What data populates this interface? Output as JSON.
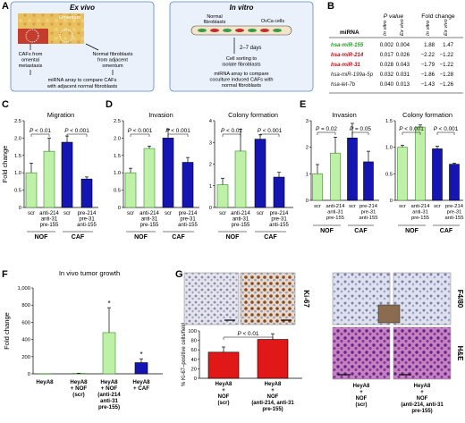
{
  "colors": {
    "green": "#bff0a8",
    "blue": "#1515b4",
    "red": "#e01818",
    "light_blue_box": "#eaf1fb",
    "mir_green": "#2a9a2a",
    "mir_red": "#c0101c"
  },
  "panel_labels": [
    "A",
    "B",
    "C",
    "D",
    "E",
    "F",
    "G"
  ],
  "panelA": {
    "exvivo_title": "Ex vivo",
    "omentum_label": "Omentum",
    "caf_text": [
      "CAFs from",
      "omental",
      "metastasis"
    ],
    "nf_text": [
      "Normal fibroblasts",
      "from adjacent",
      "omentum"
    ],
    "bottom_text": [
      "miRNA array to compare CAFs",
      "with adjacent normal fibroblasts"
    ],
    "invitro_title": "In vitro",
    "normal_fib_label": [
      "Normal",
      "fibroblasts"
    ],
    "ovca_label": "OvCa cells",
    "days_label": "2–7 days",
    "sorting_text": [
      "Cell sorting to",
      "isolate fibroblasts"
    ],
    "invitro_bottom": [
      "miRNA array to compare",
      "coculture induced CAFs with",
      "normal fibroblasts"
    ]
  },
  "panelB": {
    "pvalue_header": "P value",
    "fold_header": "Fold change",
    "col_labels": [
      "In vitro",
      "Ex vivo",
      "In vitro",
      "Ex vivo"
    ],
    "mirna_header": "miRNA",
    "rows": [
      {
        "name": "hsa-miR-155",
        "color": "green",
        "vals": [
          "0.002",
          "0.004",
          "1.88",
          "1.47"
        ]
      },
      {
        "name": "hsa-miR-214",
        "color": "red",
        "vals": [
          "0.017",
          "0.026",
          "−2.22",
          "−1.22"
        ]
      },
      {
        "name": "hsa-miR-31",
        "color": "red",
        "vals": [
          "0.028",
          "0.043",
          "−1.79",
          "−1.22"
        ]
      },
      {
        "name": "hsa-miR-199a-5p",
        "color": "black",
        "vals": [
          "0.032",
          "0.031",
          "−1.86",
          "−1.28"
        ]
      },
      {
        "name": "hsa-let-7b",
        "color": "black",
        "vals": [
          "0.040",
          "0.013",
          "−1.43",
          "−1.26"
        ]
      }
    ]
  },
  "chart_data": [
    {
      "id": "C",
      "type": "bar",
      "title": "Migration",
      "ylabel": "Fold change",
      "ylim": [
        0,
        2.5
      ],
      "yticks": [
        "0",
        "0.5",
        "1.0",
        "1.5",
        "2.0",
        "2.5"
      ],
      "categories": [
        "scr",
        "anti-214 anti-31 pre-155",
        "scr",
        "pre-214 pre-31 anti-155"
      ],
      "values": [
        1.0,
        1.62,
        1.88,
        0.82
      ],
      "errors": [
        0.28,
        0.38,
        0.18,
        0.06
      ],
      "fills": [
        "green",
        "green",
        "blue",
        "blue"
      ],
      "pvalues": [
        "P < 0.01",
        "P < 0.001"
      ],
      "groups": [
        "NOF",
        "CAF"
      ]
    },
    {
      "id": "D1",
      "type": "bar",
      "title": "Invasion",
      "ylim": [
        0,
        2.5
      ],
      "yticks": [
        "0",
        "0.5",
        "1.0",
        "1.5",
        "2.0",
        "2.5"
      ],
      "categories": [
        "scr",
        "anti-214 anti-31 pre-155",
        "scr",
        "pre-214 pre-31 anti-155"
      ],
      "values": [
        1.0,
        1.7,
        2.0,
        1.3
      ],
      "errors": [
        0.13,
        0.07,
        0.26,
        0.14
      ],
      "fills": [
        "green",
        "green",
        "blue",
        "blue"
      ],
      "pvalues": [
        "P < 0.001",
        "P < 0.001"
      ],
      "groups": [
        "NOF",
        "CAF"
      ]
    },
    {
      "id": "D2",
      "type": "bar",
      "title": "Colony formation",
      "ylim": [
        0,
        4
      ],
      "yticks": [
        "0",
        "1",
        "2",
        "3",
        "4"
      ],
      "categories": [
        "scr",
        "anti-214 anti-31 pre-155",
        "scr",
        "pre-214 pre-31 anti-155"
      ],
      "values": [
        1.05,
        2.6,
        3.15,
        1.4
      ],
      "errors": [
        0.3,
        1.0,
        0.2,
        0.22
      ],
      "fills": [
        "green",
        "green",
        "blue",
        "blue"
      ],
      "pvalues": [
        "P < 0.01",
        "P < 0.001"
      ],
      "groups": [
        "NOF",
        "CAF"
      ]
    },
    {
      "id": "E1",
      "type": "bar",
      "title": "Invasion",
      "ylim": [
        0,
        3
      ],
      "yticks": [
        "0",
        "1",
        "2",
        "3"
      ],
      "categories": [
        "scr",
        "anti-214 anti-31 pre-155",
        "scr",
        "pre-214 pre-31 anti-155"
      ],
      "values": [
        1.0,
        1.78,
        2.35,
        1.45
      ],
      "errors": [
        0.35,
        0.6,
        0.55,
        0.4
      ],
      "fills": [
        "green",
        "green",
        "blue",
        "blue"
      ],
      "pvalues": [
        "P = 0.02",
        "P = 0.05"
      ],
      "groups": [
        "NOF",
        "CAF"
      ]
    },
    {
      "id": "E2",
      "type": "bar",
      "title": "Colony formation",
      "ylim": [
        0,
        1.5
      ],
      "yticks": [
        "0",
        "0.5",
        "1.0",
        "1.5"
      ],
      "categories": [
        "scr",
        "anti-214 anti-31 pre-155",
        "scr",
        "pre-214 pre-31 anti-155"
      ],
      "values": [
        1.0,
        1.38,
        0.97,
        0.68
      ],
      "errors": [
        0.04,
        0.04,
        0.05,
        0.02
      ],
      "fills": [
        "green",
        "green",
        "blue",
        "blue"
      ],
      "pvalues": [
        "P < 0.001",
        "P < 0.001"
      ],
      "groups": [
        "NOF",
        "CAF"
      ]
    },
    {
      "id": "F",
      "type": "bar",
      "title": "In vivo tumor growth",
      "ylabel": "Fold change",
      "ylim": [
        0,
        1000
      ],
      "yticks": [
        "0",
        "200",
        "400",
        "600",
        "800",
        "1,000"
      ],
      "categories": [
        "HeyA8",
        "HeyA8 + NOF (scr)",
        "HeyA8 + NOF (anti-214 anti-31 pre-155)",
        "HeyA8 + CAF"
      ],
      "values": [
        1,
        5,
        480,
        130
      ],
      "errors": [
        0,
        2,
        290,
        45
      ],
      "fills": [
        "green",
        "green",
        "green",
        "blue"
      ],
      "stars": [
        "",
        "",
        "*",
        "*"
      ]
    },
    {
      "id": "G",
      "type": "bar",
      "ylabel": "% Ki-67–positive cells/field",
      "ylim": [
        0,
        100
      ],
      "yticks": [
        "0",
        "20",
        "40",
        "60",
        "80",
        "100"
      ],
      "categories": [
        "HeyA8 + NOF (scr)",
        "HeyA8 + NOF (anti-214, anti-31 pre-155)"
      ],
      "values": [
        55,
        82
      ],
      "errors": [
        11,
        12
      ],
      "fills": [
        "red",
        "red"
      ],
      "pvalues": [
        "P < 0.01"
      ]
    }
  ],
  "panelG": {
    "ki67_label": "Ki-67",
    "f480_label": "F4/80",
    "he_label": "H&E",
    "right_labels": [
      [
        "HeyA8",
        "+",
        "NOF",
        "(scr)"
      ],
      [
        "HeyA8",
        "+",
        "NOF",
        "(anti-214, anti-31",
        "pre-155)"
      ]
    ]
  }
}
